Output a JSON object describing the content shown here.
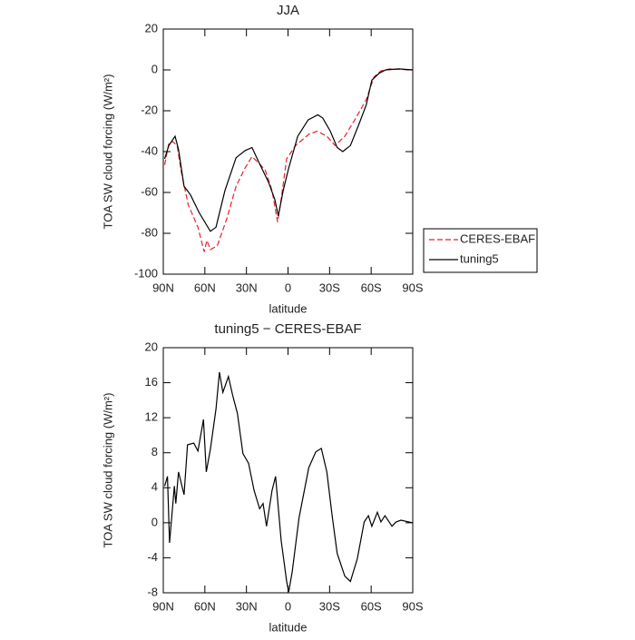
{
  "chart_data": [
    {
      "type": "line",
      "title": "JJA",
      "xlabel": "latitude",
      "ylabel": "TOA SW cloud forcing (W/m²)",
      "xlim": [
        90,
        -90
      ],
      "xticks": [
        {
          "value": 90,
          "label": "90N"
        },
        {
          "value": 60,
          "label": "60N"
        },
        {
          "value": 30,
          "label": "30N"
        },
        0,
        {
          "value": -30,
          "label": "30S"
        },
        {
          "value": -60,
          "label": "60S"
        },
        {
          "value": -90,
          "label": "90S"
        }
      ],
      "ylim": [
        -100,
        20
      ],
      "yticks": [
        -100,
        -80,
        -60,
        -40,
        -20,
        0,
        20
      ],
      "legend": "outside-right",
      "series": [
        {
          "name": "CERES-EBAF",
          "color": "#e8202a",
          "dash": true,
          "x": [
            89,
            86,
            83.5,
            80,
            77,
            72,
            65,
            60.5,
            58.5,
            56,
            51,
            44,
            37.5,
            31,
            26,
            20.5,
            16.5,
            11.5,
            7.5,
            5,
            1,
            -5.5,
            -15,
            -21,
            -28,
            -34,
            -41,
            -49,
            -56.5,
            -62,
            -67,
            -73.5,
            -90
          ],
          "values": [
            -46.5,
            -36,
            -35,
            -37,
            -50,
            -66,
            -77,
            -89,
            -83.5,
            -88,
            -86,
            -72.5,
            -57,
            -48,
            -42.5,
            -46,
            -49,
            -59,
            -74.5,
            -63.5,
            -43.5,
            -37,
            -31.5,
            -30,
            -32.5,
            -37,
            -32.5,
            -23.5,
            -14.5,
            -3.5,
            -0.5,
            0.5,
            0
          ]
        },
        {
          "name": "tuning5",
          "color": "#000000",
          "dash": false,
          "x": [
            89,
            86,
            81.5,
            79,
            75,
            70.5,
            64,
            56,
            52,
            45.5,
            37.5,
            31,
            26,
            20.5,
            14,
            9.5,
            7,
            3.5,
            -0.5,
            -7,
            -14.5,
            -21.5,
            -25,
            -30.5,
            -35.5,
            -39.5,
            -45,
            -51.5,
            -56.5,
            -60.5,
            -66,
            -70.5,
            -80,
            -90
          ],
          "values": [
            -43.5,
            -37,
            -32.5,
            -39,
            -57,
            -61,
            -70,
            -79,
            -77,
            -59,
            -43,
            -39.5,
            -38,
            -46,
            -55,
            -63.5,
            -71.5,
            -59,
            -48,
            -32.5,
            -24.5,
            -22,
            -23.5,
            -30,
            -38,
            -40,
            -37,
            -26,
            -17,
            -5,
            -1.5,
            0,
            0.5,
            0
          ]
        }
      ]
    },
    {
      "type": "line",
      "title": "tuning5 − CERES-EBAF",
      "xlabel": "latitude",
      "ylabel": "TOA SW cloud forcing (W/m²)",
      "xlim": [
        90,
        -90
      ],
      "xticks": [
        {
          "value": 90,
          "label": "90N"
        },
        {
          "value": 60,
          "label": "60N"
        },
        {
          "value": 30,
          "label": "30N"
        },
        0,
        {
          "value": -30,
          "label": "30S"
        },
        {
          "value": -60,
          "label": "60S"
        },
        {
          "value": -90,
          "label": "90S"
        }
      ],
      "ylim": [
        -8,
        20
      ],
      "yticks": [
        -8,
        -4,
        0,
        4,
        8,
        12,
        16,
        20
      ],
      "series": [
        {
          "color": "#000000",
          "dash": false,
          "x": [
            89,
            87,
            85.5,
            82,
            81,
            79,
            75,
            72.5,
            68,
            65,
            61,
            59,
            56,
            52,
            49.5,
            47,
            43,
            40,
            36.5,
            32.5,
            28.5,
            24.5,
            20.5,
            18,
            15.5,
            11.5,
            9,
            5,
            1,
            -0.5,
            -3,
            -8,
            -15,
            -20,
            -24,
            -28,
            -32,
            -35.5,
            -41,
            -45,
            -50,
            -55,
            -58,
            -60.5,
            -64.5,
            -67,
            -70,
            -75,
            -78,
            -81.5,
            -90
          ],
          "values": [
            4.2,
            5.3,
            -2.3,
            4.2,
            2.2,
            5.8,
            3.2,
            8.9,
            9.1,
            8.2,
            11.8,
            5.8,
            8.4,
            13,
            17.2,
            14.9,
            16.7,
            14.6,
            12.5,
            7.9,
            6.8,
            3.7,
            1.6,
            2.2,
            -0.4,
            3.7,
            5.3,
            -2,
            -6.7,
            -7.9,
            -5.6,
            0.6,
            6.3,
            8.1,
            8.5,
            5.8,
            0.6,
            -3.5,
            -6.1,
            -6.7,
            -4.1,
            0.1,
            0.8,
            -0.4,
            1.2,
            0.1,
            0.8,
            -0.4,
            0.1,
            0.3,
            0
          ]
        }
      ]
    }
  ]
}
